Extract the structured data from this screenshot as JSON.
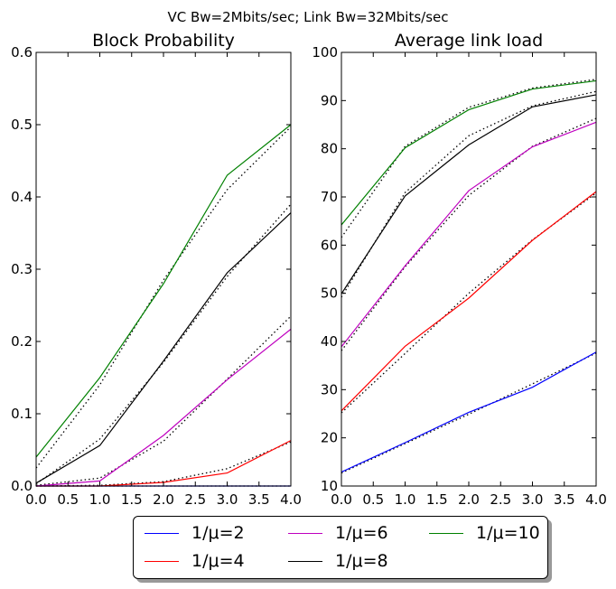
{
  "figure": {
    "suptitle": "VC Bw=2Mbits/sec; Link Bw=32Mbits/sec"
  },
  "chart_data": [
    {
      "type": "line",
      "title": "Block Probability",
      "xlabel": "",
      "ylabel": "",
      "xlim": [
        0,
        4
      ],
      "ylim": [
        0,
        0.6
      ],
      "xticks": [
        "0.0",
        "0.5",
        "1.0",
        "1.5",
        "2.0",
        "2.5",
        "3.0",
        "3.5",
        "4.0"
      ],
      "yticks": [
        "0.0",
        "0.1",
        "0.2",
        "0.3",
        "0.4",
        "0.5",
        "0.6"
      ],
      "xtick_values": [
        0,
        0.5,
        1,
        1.5,
        2,
        2.5,
        3,
        3.5,
        4
      ],
      "ytick_values": [
        0,
        0.1,
        0.2,
        0.3,
        0.4,
        0.5,
        0.6
      ],
      "x": [
        0,
        1,
        2,
        3,
        4
      ],
      "series": [
        {
          "name": "1/μ=2",
          "color": "#0000ff",
          "values": [
            0,
            0,
            0,
            0,
            0
          ],
          "dotted": [
            0,
            0,
            0,
            0,
            0
          ]
        },
        {
          "name": "1/μ=4",
          "color": "#ff0000",
          "values": [
            0,
            0,
            0.005,
            0.018,
            0.063
          ],
          "dotted": [
            0,
            0.001,
            0.006,
            0.024,
            0.061
          ]
        },
        {
          "name": "1/μ=6",
          "color": "#bf00bf",
          "values": [
            0,
            0.007,
            0.07,
            0.147,
            0.217
          ],
          "dotted": [
            0.001,
            0.011,
            0.062,
            0.148,
            0.235
          ]
        },
        {
          "name": "1/μ=8",
          "color": "#000000",
          "values": [
            0.004,
            0.056,
            0.173,
            0.295,
            0.378
          ],
          "dotted": [
            0.003,
            0.065,
            0.171,
            0.29,
            0.39
          ]
        },
        {
          "name": "1/μ=10",
          "color": "#008000",
          "values": [
            0.04,
            0.15,
            0.28,
            0.43,
            0.5
          ],
          "dotted": [
            0.025,
            0.14,
            0.285,
            0.41,
            0.497
          ]
        }
      ]
    },
    {
      "type": "line",
      "title": "Average link load",
      "xlabel": "",
      "ylabel": "",
      "xlim": [
        0,
        4
      ],
      "ylim": [
        10,
        100
      ],
      "xticks": [
        "0.0",
        "0.5",
        "1.0",
        "1.5",
        "2.0",
        "2.5",
        "3.0",
        "3.5",
        "4.0"
      ],
      "yticks": [
        "10",
        "20",
        "30",
        "40",
        "50",
        "60",
        "70",
        "80",
        "90",
        "100"
      ],
      "xtick_values": [
        0,
        0.5,
        1,
        1.5,
        2,
        2.5,
        3,
        3.5,
        4
      ],
      "ytick_values": [
        10,
        20,
        30,
        40,
        50,
        60,
        70,
        80,
        90,
        100
      ],
      "x": [
        0,
        1,
        2,
        3,
        4
      ],
      "series": [
        {
          "name": "1/μ=2",
          "color": "#0000ff",
          "values": [
            12.9,
            19,
            25.3,
            30.5,
            37.8
          ],
          "dotted": [
            12.7,
            18.8,
            24.9,
            31.2,
            37.6
          ]
        },
        {
          "name": "1/μ=4",
          "color": "#ff0000",
          "values": [
            25.6,
            39,
            49,
            61,
            71.1
          ],
          "dotted": [
            25.2,
            37.5,
            50,
            61.1,
            70.8
          ]
        },
        {
          "name": "1/μ=6",
          "color": "#bf00bf",
          "values": [
            38.9,
            55.7,
            71.3,
            80.4,
            85.5
          ],
          "dotted": [
            38.1,
            55.5,
            70.3,
            80.5,
            86.3
          ]
        },
        {
          "name": "1/μ=8",
          "color": "#000000",
          "values": [
            49.9,
            70.2,
            80.8,
            88.7,
            91.2
          ],
          "dotted": [
            49.2,
            70.9,
            82.7,
            88.9,
            91.9
          ]
        },
        {
          "name": "1/μ=10",
          "color": "#008000",
          "values": [
            64.2,
            80.2,
            88.1,
            92.4,
            94.1
          ],
          "dotted": [
            61.6,
            80.5,
            88.6,
            92.6,
            94.4
          ]
        }
      ]
    }
  ],
  "legend": {
    "placement": "bottom-center",
    "columns": 3,
    "entries": [
      {
        "label": "1/μ=2",
        "color": "#0000ff"
      },
      {
        "label": "1/μ=4",
        "color": "#ff0000"
      },
      {
        "label": "1/μ=6",
        "color": "#bf00bf"
      },
      {
        "label": "1/μ=8",
        "color": "#000000"
      },
      {
        "label": "1/μ=10",
        "color": "#008000"
      }
    ]
  }
}
